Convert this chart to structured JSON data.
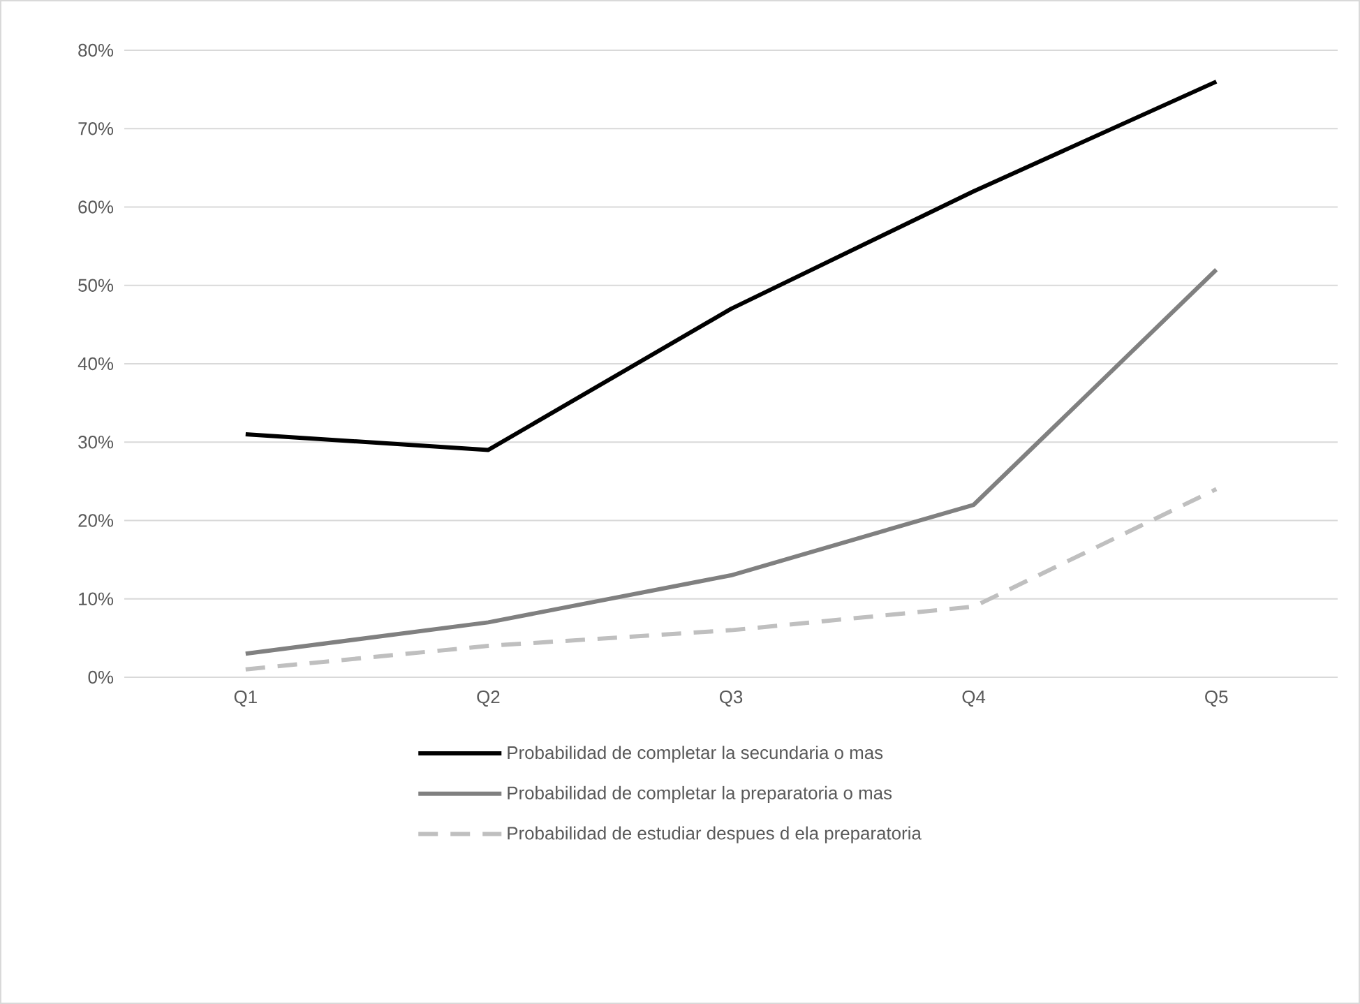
{
  "chart_data": {
    "type": "line",
    "categories": [
      "Q1",
      "Q2",
      "Q3",
      "Q4",
      "Q5"
    ],
    "series": [
      {
        "name": "Probabilidad de completar la secundaria o mas",
        "color": "#000000",
        "values": [
          31,
          29,
          47,
          62,
          76
        ],
        "line_style": "solid"
      },
      {
        "name": "Probabilidad de completar la preparatoria o mas",
        "color": "#808080",
        "values": [
          3,
          7,
          13,
          22,
          52
        ],
        "line_style": "solid"
      },
      {
        "name": "Probabilidad de estudiar despues d ela preparatoria",
        "color": "#bfbfbf",
        "values": [
          1,
          4,
          6,
          9,
          24
        ],
        "line_style": "dashed"
      }
    ],
    "ylim": [
      0,
      80
    ],
    "yticks": [
      {
        "value": 0,
        "label": "0%"
      },
      {
        "value": 10,
        "label": "10%"
      },
      {
        "value": 20,
        "label": "20%"
      },
      {
        "value": 30,
        "label": "30%"
      },
      {
        "value": 40,
        "label": "40%"
      },
      {
        "value": 50,
        "label": "50%"
      },
      {
        "value": 60,
        "label": "60%"
      },
      {
        "value": 70,
        "label": "70%"
      },
      {
        "value": 80,
        "label": "80%"
      }
    ],
    "grid": "y",
    "legend": "bottom",
    "marker": "none"
  }
}
